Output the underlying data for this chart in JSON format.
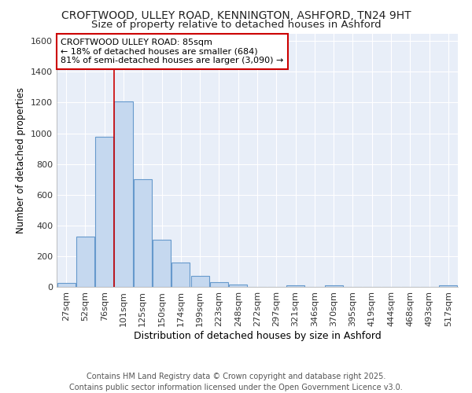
{
  "title1": "CROFTWOOD, ULLEY ROAD, KENNINGTON, ASHFORD, TN24 9HT",
  "title2": "Size of property relative to detached houses in Ashford",
  "xlabel": "Distribution of detached houses by size in Ashford",
  "ylabel": "Number of detached properties",
  "categories": [
    "27sqm",
    "52sqm",
    "76sqm",
    "101sqm",
    "125sqm",
    "150sqm",
    "174sqm",
    "199sqm",
    "223sqm",
    "248sqm",
    "272sqm",
    "297sqm",
    "321sqm",
    "346sqm",
    "370sqm",
    "395sqm",
    "419sqm",
    "444sqm",
    "468sqm",
    "493sqm",
    "517sqm"
  ],
  "values": [
    25,
    330,
    975,
    1205,
    700,
    308,
    158,
    72,
    30,
    14,
    0,
    0,
    10,
    0,
    12,
    0,
    0,
    0,
    0,
    0,
    12
  ],
  "bar_color": "#c5d8ef",
  "bar_edge_color": "#6699cc",
  "red_line_x": 2.5,
  "annotation_title": "CROFTWOOD ULLEY ROAD: 85sqm",
  "annotation_line1": "← 18% of detached houses are smaller (684)",
  "annotation_line2": "81% of semi-detached houses are larger (3,090) →",
  "annotation_box_color": "#ffffff",
  "annotation_box_edge": "#cc0000",
  "ylim": [
    0,
    1650
  ],
  "yticks": [
    0,
    200,
    400,
    600,
    800,
    1000,
    1200,
    1400,
    1600
  ],
  "footer1": "Contains HM Land Registry data © Crown copyright and database right 2025.",
  "footer2": "Contains public sector information licensed under the Open Government Licence v3.0.",
  "background_color": "#ffffff",
  "plot_bg_color": "#e8eef8",
  "grid_color": "#ffffff",
  "title1_fontsize": 10,
  "title2_fontsize": 9.5,
  "xlabel_fontsize": 9,
  "ylabel_fontsize": 8.5,
  "tick_fontsize": 8,
  "annotation_fontsize": 8,
  "footer_fontsize": 7
}
